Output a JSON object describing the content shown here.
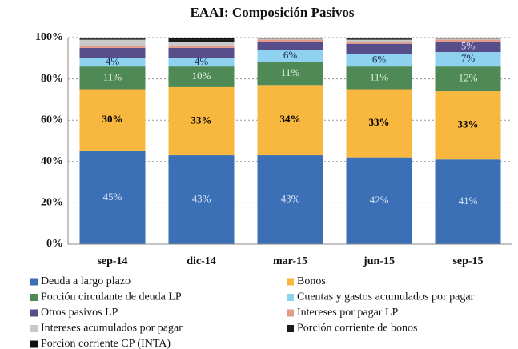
{
  "chart_data": {
    "type": "stacked_bar_100",
    "title": "EAAI: Composición Pasivos",
    "categories": [
      "sep-14",
      "dic-14",
      "mar-15",
      "jun-15",
      "sep-15"
    ],
    "ylim": [
      0,
      100
    ],
    "yticks": [
      {
        "value": 0,
        "label": "0%"
      },
      {
        "value": 20,
        "label": "20%"
      },
      {
        "value": 40,
        "label": "40%"
      },
      {
        "value": 60,
        "label": "60%"
      },
      {
        "value": 80,
        "label": "80%"
      },
      {
        "value": 100,
        "label": "100%"
      }
    ],
    "grid": true,
    "series": [
      {
        "name": "Deuda a largo plazo",
        "color": "#3b6fb6",
        "label_color": "#d8e4f4",
        "values": [
          45,
          43,
          43,
          42,
          41
        ],
        "value_labels": [
          "45%",
          "43%",
          "43%",
          "42%",
          "41%"
        ]
      },
      {
        "name": "Bonos",
        "color": "#f8b73e",
        "label_color": "#000000",
        "values": [
          30,
          33,
          34,
          33,
          33
        ],
        "value_labels": [
          "30%",
          "33%",
          "34%",
          "33%",
          "33%"
        ]
      },
      {
        "name": "Porción circulante de deuda LP",
        "color": "#4f8a56",
        "label_color": "#e2efe2",
        "values": [
          11,
          10,
          11,
          11,
          12
        ],
        "value_labels": [
          "11%",
          "10%",
          "11%",
          "11%",
          "12%"
        ]
      },
      {
        "name": "Cuentas y gastos acumulados por pagar",
        "color": "#8ed2f0",
        "label_color": "#1a2a4a",
        "values": [
          4,
          4,
          6,
          6,
          7
        ],
        "value_labels": [
          "4%",
          "4%",
          "6%",
          "6%",
          "7%"
        ]
      },
      {
        "name": "Otros pasivos LP",
        "color": "#574d8a",
        "label_color": "#e0dcf4",
        "values": [
          5,
          5,
          4,
          5,
          5
        ],
        "value_labels": [
          null,
          null,
          null,
          null,
          "5%"
        ]
      },
      {
        "name": "Intereses por pagar LP",
        "color": "#e39a86",
        "values": [
          1,
          1,
          1,
          1,
          1
        ]
      },
      {
        "name": "Intereses acumulados por pagar",
        "color": "#c8c8c8",
        "values": [
          3,
          2,
          0.5,
          1,
          0.5
        ]
      },
      {
        "name": "Porción corriente de bonos",
        "color": "#1a1a1a",
        "values": [
          0.5,
          1,
          0.5,
          0.5,
          0.5
        ]
      },
      {
        "name": "Porcion corriente CP (INTA)",
        "color": "#111111",
        "values": [
          0.5,
          1,
          0,
          0.5,
          0
        ]
      }
    ]
  }
}
